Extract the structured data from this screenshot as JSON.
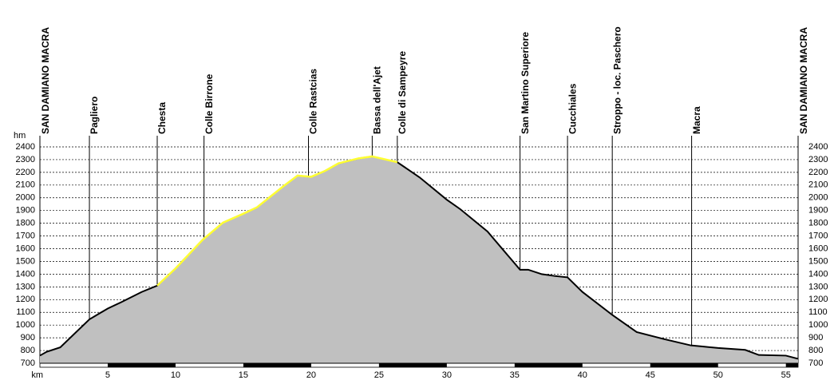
{
  "chart_data": {
    "type": "area",
    "y_unit": "hm",
    "x_unit": "km",
    "start_label": "SAN DAMIANO MACRA",
    "end_label": "SAN DAMIANO MACRA",
    "x": [
      0,
      0.5,
      1.5,
      3.65,
      5,
      6,
      7.5,
      8.65,
      10,
      12,
      13.5,
      15,
      16,
      18,
      19,
      20,
      21,
      22,
      23.5,
      24.5,
      26.35,
      28,
      30,
      31,
      33,
      35.4,
      36,
      37,
      38,
      38.9,
      40,
      42.2,
      44,
      46,
      48,
      49,
      50,
      52,
      53,
      55,
      55.9
    ],
    "values": [
      760,
      790,
      825,
      1045,
      1130,
      1180,
      1260,
      1310,
      1445,
      1670,
      1805,
      1875,
      1925,
      2095,
      2175,
      2165,
      2210,
      2270,
      2310,
      2325,
      2280,
      2160,
      1985,
      1910,
      1735,
      1435,
      1435,
      1400,
      1385,
      1375,
      1260,
      1080,
      945,
      890,
      840,
      830,
      820,
      805,
      765,
      760,
      735
    ],
    "color": "#c0c0c0",
    "highlight": {
      "from": 8.65,
      "to": 26.35,
      "color": "#ffff33"
    },
    "waypoints": [
      {
        "name": "Pagliero",
        "km": 3.65
      },
      {
        "name": "Chesta",
        "km": 8.65
      },
      {
        "name": "Colle Birrone",
        "km": 12.1
      },
      {
        "name": "Colle Rastcias",
        "km": 19.8
      },
      {
        "name": "Bassa dell'Ajet",
        "km": 24.5
      },
      {
        "name": "Colle di Sampeyre",
        "km": 26.35
      },
      {
        "name": "San Martino Superiore",
        "km": 35.4
      },
      {
        "name": "Cucchiales",
        "km": 38.9
      },
      {
        "name": "Stroppo - loc. Paschero",
        "km": 42.2
      },
      {
        "name": "Macra",
        "km": 48.05
      }
    ],
    "xlim": [
      0,
      55.9
    ],
    "xticks": [
      5,
      10,
      15,
      20,
      25,
      30,
      35,
      40,
      45,
      50,
      55
    ],
    "ylim": [
      700,
      2400
    ],
    "yticks": [
      700,
      800,
      900,
      1000,
      1100,
      1200,
      1300,
      1400,
      1500,
      1600,
      1700,
      1800,
      1900,
      2000,
      2100,
      2200,
      2300,
      2400
    ],
    "grid": true
  }
}
